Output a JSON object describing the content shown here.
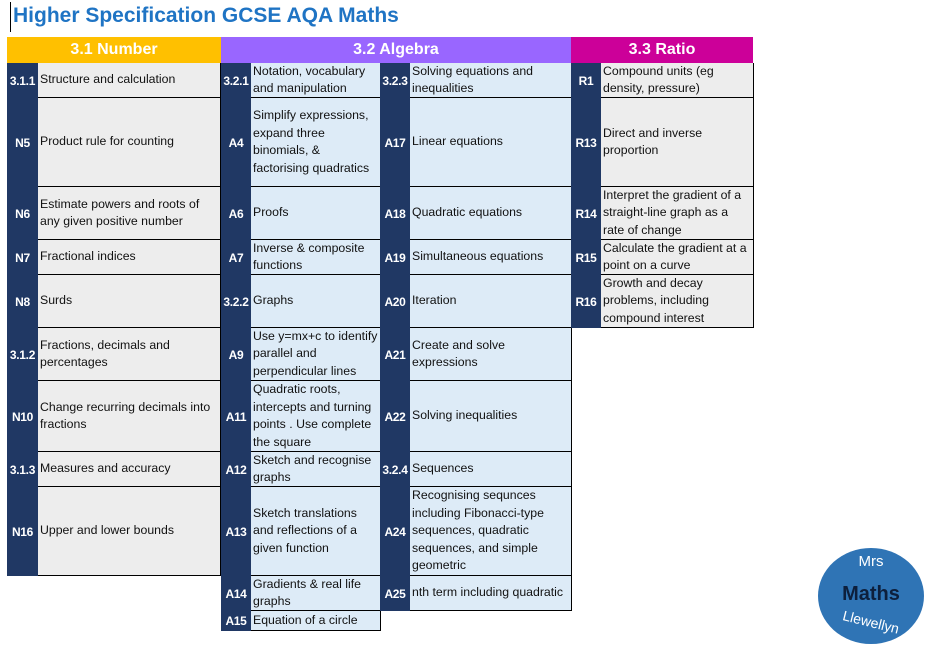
{
  "title": "Higher Specification GCSE AQA Maths",
  "colors": {
    "number": "#ffc000",
    "algebra": "#9966ff",
    "ratio": "#cc0099",
    "code_bg": "#203864",
    "number_cell": "#ededed",
    "algebra_cell": "#ddebf7",
    "title": "#1f74c4"
  },
  "headers": {
    "number": "3.1 Number",
    "algebra": "3.2 Algebra",
    "ratio": "3.3 Ratio"
  },
  "number": [
    {
      "code": "3.1.1",
      "text": "Structure and calculation"
    },
    {
      "code": "N5",
      "text": "Product rule for counting"
    },
    {
      "code": "N6",
      "text": "Estimate powers and roots of any given positive number"
    },
    {
      "code": "N7",
      "text": "Fractional indices"
    },
    {
      "code": "N8",
      "text": "Surds"
    },
    {
      "code": "3.1.2",
      "text": "Fractions, decimals and percentages"
    },
    {
      "code": "N10",
      "text": "Change recurring decimals into fractions"
    },
    {
      "code": "3.1.3",
      "text": "Measures and accuracy"
    },
    {
      "code": "N16",
      "text": "Upper and lower bounds"
    }
  ],
  "algebra_a": [
    {
      "code": "3.2.1",
      "text": "Notation, vocabulary and manipulation"
    },
    {
      "code": "A4",
      "text": "Simplify expressions, expand three binomials, & factorising quadratics"
    },
    {
      "code": "A6",
      "text": "Proofs"
    },
    {
      "code": "A7",
      "text": "Inverse & composite functions"
    },
    {
      "code": "3.2.2",
      "text": "Graphs"
    },
    {
      "code": "A9",
      "text": "Use y=mx+c to identify parallel and perpendicular lines"
    },
    {
      "code": "A11",
      "text": "Quadratic roots, intercepts and turning points . Use complete the square"
    },
    {
      "code": "A12",
      "text": "Sketch and recognise graphs"
    },
    {
      "code": "A13",
      "text": "Sketch translations and reflections of a given function"
    },
    {
      "code": "A14",
      "text": "Gradients & real life graphs"
    },
    {
      "code": "A15",
      "text": "Equation of a circle"
    }
  ],
  "algebra_b": [
    {
      "code": "3.2.3",
      "text": "Solving equations and inequalities"
    },
    {
      "code": "A17",
      "text": "Linear equations"
    },
    {
      "code": "A18",
      "text": "Quadratic equations"
    },
    {
      "code": "A19",
      "text": "Simultaneous equations"
    },
    {
      "code": "A20",
      "text": "Iteration"
    },
    {
      "code": "A21",
      "text": "Create and solve expressions"
    },
    {
      "code": "A22",
      "text": "Solving inequalities"
    },
    {
      "code": "3.2.4",
      "text": "Sequences"
    },
    {
      "code": "A24",
      "text": "Recognising sequnces including Fibonacci-type sequences, quadratic sequences, and simple geometric"
    },
    {
      "code": "A25",
      "text": "nth term including quadratic"
    }
  ],
  "ratio": [
    {
      "code": "R1",
      "text": "Compound units (eg density, pressure)"
    },
    {
      "code": "R13",
      "text": "Direct and inverse proportion"
    },
    {
      "code": "R14",
      "text": "Interpret the gradient of a straight-line graph as a rate of change"
    },
    {
      "code": "R15",
      "text": "Calculate the gradient at a point on a curve"
    },
    {
      "code": "R16",
      "text": "Growth and decay problems, including compound interest"
    }
  ],
  "logo": {
    "top": "Mrs",
    "middle": "Maths",
    "bottom": "Llewellyn"
  }
}
